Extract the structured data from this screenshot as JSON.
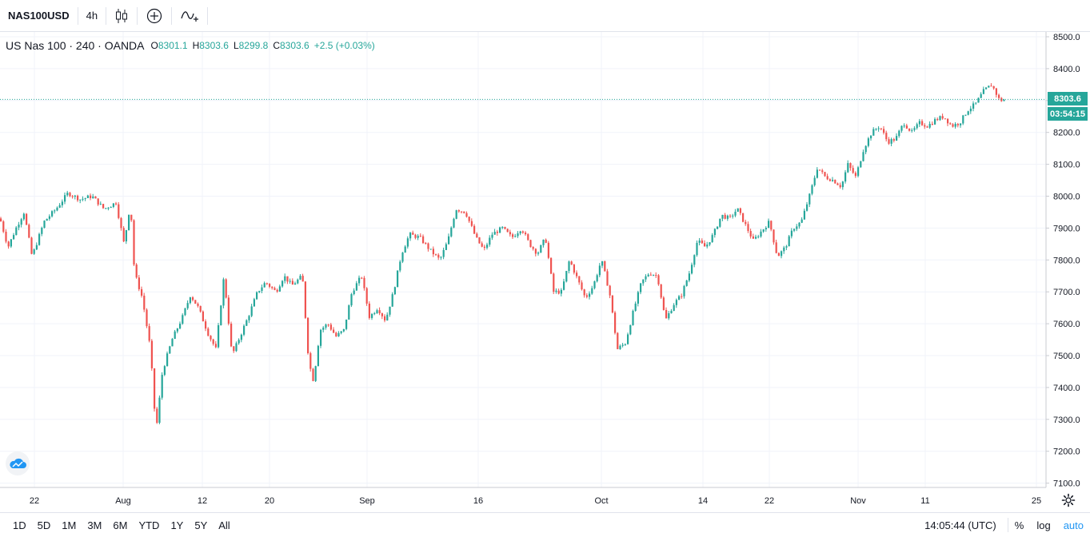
{
  "toolbar": {
    "symbol": "NAS100USD",
    "interval": "4h",
    "icons": [
      "candles-icon",
      "compare-plus-icon",
      "indicators-icon"
    ]
  },
  "legend": {
    "title": "US Nas 100 · 240 · OANDA",
    "open_key": "O",
    "open": "8301.1",
    "high_key": "H",
    "high": "8303.6",
    "low_key": "L",
    "low": "8299.8",
    "close_key": "C",
    "close": "8303.6",
    "change": "+2.5 (+0.03%)"
  },
  "price_scale": {
    "ticks": [
      "8500.0",
      "8400.0",
      "8300.0",
      "8200.0",
      "8100.0",
      "8000.0",
      "7900.0",
      "7800.0",
      "7700.0",
      "7600.0",
      "7500.0",
      "7400.0",
      "7300.0",
      "7200.0",
      "7100.0"
    ],
    "current_price": "8303.6",
    "countdown": "03:54:15"
  },
  "time_scale": {
    "ticks": [
      "22",
      "Aug",
      "12",
      "20",
      "Sep",
      "16",
      "Oct",
      "14",
      "22",
      "Nov",
      "11",
      "25"
    ]
  },
  "colors": {
    "up": "#26a69a",
    "down": "#ef5350",
    "grid": "#f0f3fa",
    "accent": "#2196f3"
  },
  "chart_data": {
    "type": "candlestick",
    "title": "US Nas 100 · 240 · OANDA",
    "ylim": [
      7100,
      8500
    ],
    "current_price": 8303.6,
    "path": [
      [
        0,
        7930
      ],
      [
        10,
        7840
      ],
      [
        20,
        7900
      ],
      [
        30,
        7950
      ],
      [
        40,
        7810
      ],
      [
        55,
        7920
      ],
      [
        70,
        7960
      ],
      [
        85,
        8010
      ],
      [
        100,
        7990
      ],
      [
        115,
        8000
      ],
      [
        130,
        7960
      ],
      [
        145,
        7980
      ],
      [
        155,
        7850
      ],
      [
        163,
        7980
      ],
      [
        168,
        7760
      ],
      [
        178,
        7680
      ],
      [
        188,
        7520
      ],
      [
        195,
        7260
      ],
      [
        203,
        7450
      ],
      [
        215,
        7550
      ],
      [
        228,
        7620
      ],
      [
        238,
        7690
      ],
      [
        248,
        7650
      ],
      [
        260,
        7570
      ],
      [
        270,
        7520
      ],
      [
        280,
        7750
      ],
      [
        290,
        7500
      ],
      [
        300,
        7560
      ],
      [
        310,
        7620
      ],
      [
        322,
        7700
      ],
      [
        332,
        7730
      ],
      [
        345,
        7700
      ],
      [
        355,
        7750
      ],
      [
        365,
        7720
      ],
      [
        378,
        7750
      ],
      [
        386,
        7480
      ],
      [
        392,
        7420
      ],
      [
        400,
        7580
      ],
      [
        410,
        7600
      ],
      [
        420,
        7560
      ],
      [
        430,
        7580
      ],
      [
        440,
        7700
      ],
      [
        452,
        7750
      ],
      [
        462,
        7620
      ],
      [
        472,
        7650
      ],
      [
        482,
        7610
      ],
      [
        492,
        7700
      ],
      [
        502,
        7820
      ],
      [
        512,
        7880
      ],
      [
        525,
        7870
      ],
      [
        538,
        7830
      ],
      [
        550,
        7800
      ],
      [
        560,
        7860
      ],
      [
        570,
        7960
      ],
      [
        582,
        7950
      ],
      [
        595,
        7870
      ],
      [
        605,
        7830
      ],
      [
        615,
        7880
      ],
      [
        628,
        7900
      ],
      [
        640,
        7870
      ],
      [
        652,
        7900
      ],
      [
        662,
        7850
      ],
      [
        672,
        7820
      ],
      [
        682,
        7870
      ],
      [
        692,
        7700
      ],
      [
        702,
        7700
      ],
      [
        712,
        7800
      ],
      [
        722,
        7740
      ],
      [
        732,
        7680
      ],
      [
        742,
        7720
      ],
      [
        752,
        7800
      ],
      [
        762,
        7700
      ],
      [
        772,
        7520
      ],
      [
        782,
        7540
      ],
      [
        792,
        7640
      ],
      [
        802,
        7730
      ],
      [
        812,
        7760
      ],
      [
        822,
        7750
      ],
      [
        832,
        7610
      ],
      [
        842,
        7660
      ],
      [
        852,
        7690
      ],
      [
        862,
        7760
      ],
      [
        872,
        7860
      ],
      [
        882,
        7840
      ],
      [
        892,
        7880
      ],
      [
        902,
        7940
      ],
      [
        912,
        7930
      ],
      [
        922,
        7960
      ],
      [
        932,
        7910
      ],
      [
        942,
        7860
      ],
      [
        952,
        7890
      ],
      [
        962,
        7920
      ],
      [
        972,
        7810
      ],
      [
        982,
        7840
      ],
      [
        992,
        7900
      ],
      [
        1002,
        7920
      ],
      [
        1012,
        8000
      ],
      [
        1022,
        8090
      ],
      [
        1032,
        8060
      ],
      [
        1042,
        8050
      ],
      [
        1052,
        8030
      ],
      [
        1060,
        8100
      ],
      [
        1070,
        8060
      ],
      [
        1080,
        8150
      ],
      [
        1090,
        8200
      ],
      [
        1100,
        8220
      ],
      [
        1110,
        8170
      ],
      [
        1120,
        8180
      ],
      [
        1130,
        8230
      ],
      [
        1140,
        8200
      ],
      [
        1150,
        8230
      ],
      [
        1160,
        8220
      ],
      [
        1170,
        8240
      ],
      [
        1180,
        8250
      ],
      [
        1190,
        8220
      ],
      [
        1200,
        8230
      ],
      [
        1210,
        8270
      ],
      [
        1220,
        8290
      ],
      [
        1230,
        8330
      ],
      [
        1240,
        8350
      ],
      [
        1250,
        8300
      ],
      [
        1258,
        8303.6
      ]
    ]
  },
  "bottombar": {
    "ranges": [
      "1D",
      "5D",
      "1M",
      "3M",
      "6M",
      "YTD",
      "1Y",
      "5Y",
      "All"
    ],
    "clock": "14:05:44 (UTC)",
    "percent": "%",
    "log": "log",
    "auto": "auto"
  }
}
